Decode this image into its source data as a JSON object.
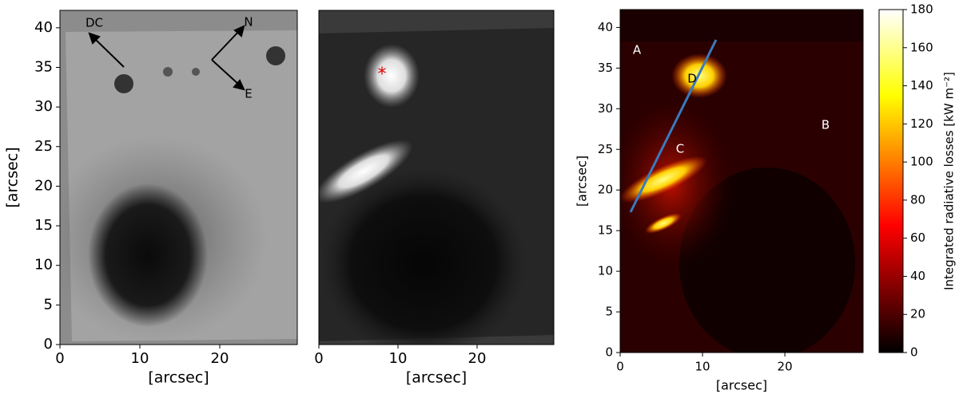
{
  "chart_data": [
    {
      "type": "image",
      "xlabel": "[arcsec]",
      "ylabel": "[arcsec]",
      "xlim": [
        0,
        29.7
      ],
      "ylim": [
        0,
        42.2
      ],
      "xticks": [
        0,
        10,
        20
      ],
      "yticks": [
        0,
        5,
        10,
        15,
        20,
        25,
        30,
        35,
        40
      ],
      "annotations": [
        "DC",
        "N",
        "E"
      ]
    },
    {
      "type": "image",
      "xlabel": "[arcsec]",
      "xlim": [
        0,
        29.7
      ],
      "ylim": [
        0,
        42.2
      ],
      "xticks": [
        0,
        10,
        20
      ],
      "annotations": [
        "*"
      ]
    },
    {
      "type": "image",
      "xlabel": "[arcsec]",
      "ylabel": "[arcsec]",
      "xlim": [
        0,
        29.5
      ],
      "ylim": [
        0,
        42.2
      ],
      "xticks": [
        0,
        10,
        20
      ],
      "yticks": [
        0,
        5,
        10,
        15,
        20,
        25,
        30,
        35,
        40
      ],
      "annotations": [
        "A",
        "B",
        "C",
        "D"
      ],
      "colorbar": {
        "label": "Integrated radiative losses [kW m⁻²]",
        "lim": [
          0,
          180
        ],
        "ticks": [
          0,
          20,
          40,
          60,
          80,
          100,
          120,
          140,
          160,
          180
        ]
      }
    }
  ]
}
